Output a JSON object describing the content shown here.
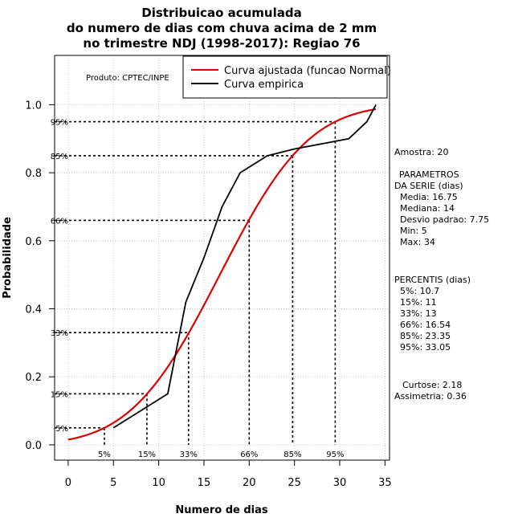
{
  "chart_data": {
    "type": "line",
    "title": [
      "Distribuicao acumulada",
      "do numero de dias com chuva acima de 2 mm",
      "no trimestre NDJ (1998-2017): Regiao 76"
    ],
    "xlabel": "Numero de dias",
    "ylabel": "Probabilidade",
    "xlim": [
      -1.5,
      35.5
    ],
    "ylim": [
      -0.045,
      1.145
    ],
    "xticks": [
      0,
      5,
      10,
      15,
      20,
      25,
      30,
      35
    ],
    "yticks": [
      0.0,
      0.2,
      0.4,
      0.6,
      0.8,
      1.0
    ],
    "ytick_labels": [
      "0.0",
      "0.2",
      "0.4",
      "0.6",
      "0.8",
      "1.0"
    ],
    "grid": true,
    "credit": "Produto: CPTEC/INPE",
    "legend": {
      "placement": "top-right",
      "entries": [
        {
          "label": "Curva ajustada (funcao Normal)",
          "color": "#dd0000"
        },
        {
          "label": "Curva empirica",
          "color": "#000000"
        }
      ]
    },
    "series": [
      {
        "name": "Curva ajustada (funcao Normal)",
        "color": "#dd0000",
        "kind": "normal_cdf",
        "mean": 16.75,
        "sd": 7.75,
        "x_range": [
          0,
          34
        ]
      },
      {
        "name": "Curva empirica",
        "color": "#000000",
        "kind": "polyline",
        "x": [
          5,
          11,
          13,
          15,
          17,
          19,
          22,
          25,
          29,
          31,
          33,
          34
        ],
        "y": [
          0.05,
          0.15,
          0.42,
          0.55,
          0.7,
          0.8,
          0.85,
          0.87,
          0.89,
          0.9,
          0.95,
          1.0
        ]
      }
    ],
    "percentile_markers": [
      {
        "label": "5%",
        "p": 0.05,
        "x": 4.0
      },
      {
        "label": "15%",
        "p": 0.15,
        "x": 8.7
      },
      {
        "label": "33%",
        "p": 0.33,
        "x": 13.3
      },
      {
        "label": "66%",
        "p": 0.66,
        "x": 20.0
      },
      {
        "label": "85%",
        "p": 0.85,
        "x": 24.8
      },
      {
        "label": "95%",
        "p": 0.95,
        "x": 29.5
      }
    ],
    "side_panel": [
      "Amostra: 20",
      "PARAMETROS",
      "DA SERIE (dias)",
      "Media: 16.75",
      "Mediana: 14",
      "Desvio padrao: 7.75",
      "Min: 5",
      "Max: 34",
      "PERCENTIS (dias)",
      "5%: 10.7",
      "15%: 11",
      "33%: 13",
      "66%: 16.54",
      "85%: 23.35",
      "95%: 33.05",
      "Curtose: 2.18",
      "Assimetria: 0.36"
    ]
  }
}
